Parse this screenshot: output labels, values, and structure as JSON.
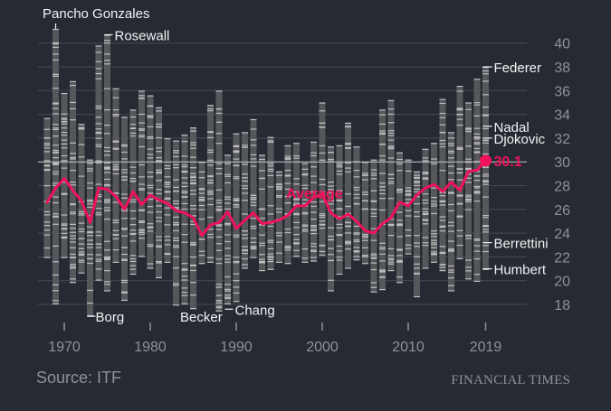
{
  "chart_data": {
    "type": "line",
    "title": "",
    "xlabel": "",
    "ylabel": "",
    "source": "Source: ITF",
    "brand": "FINANCIAL TIMES",
    "ylim": [
      18,
      41
    ],
    "yticks": [
      18,
      20,
      22,
      24,
      26,
      28,
      30,
      32,
      34,
      36,
      38,
      40
    ],
    "xticks": [
      "1970",
      "1980",
      "1990",
      "2000",
      "2010",
      "2019"
    ],
    "reference_line": 30,
    "colors": {
      "background": "#262a33",
      "bar": "#55575b",
      "tick": "#bdbdc0",
      "text": "#f2f2f2",
      "axis_text": "#8e9198",
      "gridline": "#474a52",
      "reference": "#c9cacc",
      "average": "#f0125a"
    },
    "average_series": {
      "name": "Average",
      "x": [
        1968,
        1969,
        1970,
        1971,
        1972,
        1973,
        1974,
        1975,
        1976,
        1977,
        1978,
        1979,
        1980,
        1981,
        1982,
        1983,
        1984,
        1985,
        1986,
        1987,
        1988,
        1989,
        1990,
        1991,
        1992,
        1993,
        1994,
        1995,
        1996,
        1997,
        1998,
        1999,
        2000,
        2001,
        2002,
        2003,
        2004,
        2005,
        2006,
        2007,
        2008,
        2009,
        2010,
        2011,
        2012,
        2013,
        2014,
        2015,
        2016,
        2017,
        2018,
        2019
      ],
      "values": [
        26.6,
        27.8,
        28.6,
        27.6,
        26.7,
        24.9,
        27.8,
        27.7,
        27.1,
        26.0,
        27.5,
        26.4,
        27.2,
        26.8,
        26.5,
        25.9,
        25.7,
        25.3,
        23.8,
        24.7,
        24.9,
        25.8,
        24.4,
        25.1,
        25.7,
        24.8,
        24.9,
        25.1,
        25.5,
        26.3,
        26.3,
        27.0,
        27.3,
        25.7,
        25.2,
        25.6,
        25.0,
        24.2,
        24.0,
        24.8,
        25.3,
        26.6,
        26.3,
        27.2,
        27.8,
        28.1,
        27.5,
        28.3,
        27.6,
        29.2,
        29.3,
        30.1
      ],
      "final_label": "30.1"
    },
    "age_ranges": {
      "x": [
        1968,
        1969,
        1970,
        1971,
        1972,
        1973,
        1974,
        1975,
        1976,
        1977,
        1978,
        1979,
        1980,
        1981,
        1982,
        1983,
        1984,
        1985,
        1986,
        1987,
        1988,
        1989,
        1990,
        1991,
        1992,
        1993,
        1994,
        1995,
        1996,
        1997,
        1998,
        1999,
        2000,
        2001,
        2002,
        2003,
        2004,
        2005,
        2006,
        2007,
        2008,
        2009,
        2010,
        2011,
        2012,
        2013,
        2014,
        2015,
        2016,
        2017,
        2018,
        2019
      ],
      "min": [
        21.9,
        18.0,
        21.9,
        19.8,
        20.6,
        17.0,
        20.0,
        19.1,
        21.5,
        18.3,
        20.5,
        22.0,
        21.0,
        20.2,
        21.5,
        17.9,
        18.0,
        17.6,
        21.4,
        21.5,
        17.4,
        18.0,
        18.2,
        21.0,
        21.9,
        20.8,
        20.9,
        21.5,
        21.4,
        22.0,
        21.5,
        21.6,
        22.1,
        19.1,
        20.5,
        21.0,
        21.7,
        21.4,
        19.0,
        19.2,
        20.8,
        19.8,
        22.2,
        18.6,
        21.0,
        21.5,
        20.8,
        19.1,
        21.8,
        20.1,
        19.9,
        20.9
      ],
      "max": [
        33.7,
        41.2,
        35.8,
        36.8,
        33.2,
        30.2,
        39.8,
        40.7,
        36.2,
        33.8,
        34.4,
        36.0,
        35.6,
        34.6,
        32.0,
        31.8,
        32.3,
        32.9,
        30.0,
        34.8,
        36.0,
        30.6,
        32.4,
        32.5,
        33.6,
        30.6,
        32.1,
        29.2,
        31.4,
        31.6,
        29.9,
        31.7,
        35.0,
        31.3,
        31.4,
        33.3,
        31.3,
        30.0,
        30.2,
        34.4,
        35.2,
        30.8,
        30.2,
        29.2,
        31.1,
        31.6,
        35.3,
        32.5,
        36.4,
        35.0,
        37.0,
        38.0
      ]
    },
    "player_labels": [
      {
        "name": "Pancho Gonzales",
        "year": 1969,
        "age": 41.2
      },
      {
        "name": "Rosewall",
        "year": 1975,
        "age": 40.7
      },
      {
        "name": "Borg",
        "year": 1973,
        "age": 17.0
      },
      {
        "name": "Becker",
        "year": 1986,
        "age": 17.4
      },
      {
        "name": "Chang",
        "year": 1989,
        "age": 17.6
      },
      {
        "name": "Average",
        "year": 1999,
        "age": 27.4
      },
      {
        "name": "Federer",
        "year": 2019,
        "age": 38.0
      },
      {
        "name": "Nadal",
        "year": 2019,
        "age": 33.0
      },
      {
        "name": "Djokovic",
        "year": 2019,
        "age": 32.0
      },
      {
        "name": "Berrettini",
        "year": 2019,
        "age": 23.2
      },
      {
        "name": "Humbert",
        "year": 2019,
        "age": 21.0
      }
    ]
  }
}
